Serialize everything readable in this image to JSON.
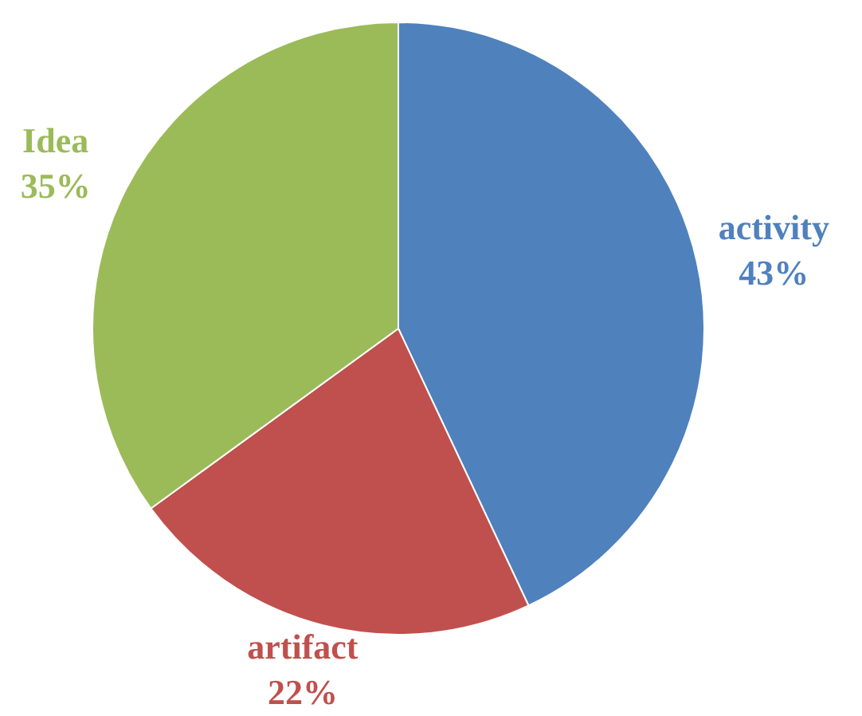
{
  "chart_data": {
    "type": "pie",
    "categories": [
      "activity",
      "artifact",
      "Idea"
    ],
    "values": [
      43,
      22,
      35
    ],
    "colors": [
      "#4f81bd",
      "#c0504d",
      "#9bbb59"
    ],
    "value_labels": [
      "43%",
      "22%",
      "35%"
    ]
  }
}
